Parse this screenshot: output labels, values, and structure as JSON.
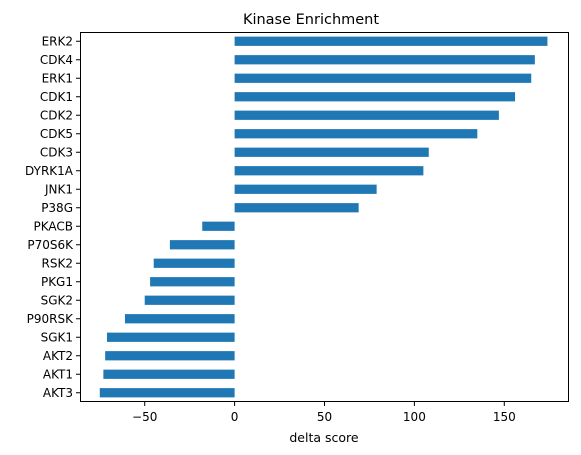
{
  "chart_data": {
    "type": "bar",
    "orientation": "horizontal",
    "title": "Kinase Enrichment",
    "xlabel": "delta score",
    "ylabel": "",
    "categories": [
      "ERK2",
      "CDK4",
      "ERK1",
      "CDK1",
      "CDK2",
      "CDK5",
      "CDK3",
      "DYRK1A",
      "JNK1",
      "P38G",
      "PKACB",
      "P70S6K",
      "RSK2",
      "PKG1",
      "SGK2",
      "P90RSK",
      "SGK1",
      "AKT2",
      "AKT1",
      "AKT3"
    ],
    "values": [
      174,
      167,
      165,
      156,
      147,
      135,
      108,
      105,
      79,
      69,
      -18,
      -36,
      -45,
      -47,
      -50,
      -61,
      -71,
      -72,
      -73,
      -75
    ],
    "xlim": [
      -86,
      186
    ],
    "xticks": [
      -50,
      0,
      50,
      100,
      150
    ],
    "grid": false,
    "legend": "none",
    "bar_color": "#1f77b4"
  }
}
